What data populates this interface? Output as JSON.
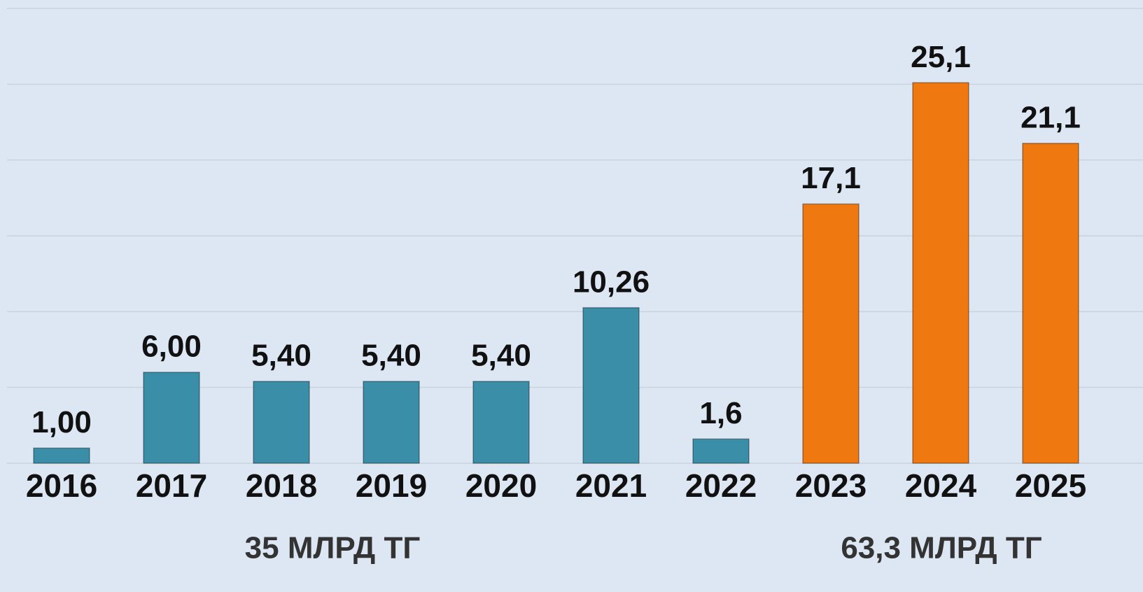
{
  "chart_data": {
    "type": "bar",
    "categories": [
      "2016",
      "2017",
      "2018",
      "2019",
      "2020",
      "2021",
      "2022",
      "2023",
      "2024",
      "2025"
    ],
    "values": [
      1.0,
      6.0,
      5.4,
      5.4,
      5.4,
      10.26,
      1.6,
      17.1,
      25.1,
      21.1
    ],
    "value_labels": [
      "1,00",
      "6,00",
      "5,40",
      "5,40",
      "5,40",
      "10,26",
      "1,6",
      "17,1",
      "25,1",
      "21,1"
    ],
    "colors": [
      "#3a8ea8",
      "#3a8ea8",
      "#3a8ea8",
      "#3a8ea8",
      "#3a8ea8",
      "#3a8ea8",
      "#3a8ea8",
      "#f07810",
      "#f07810",
      "#f07810"
    ],
    "ylim": [
      0,
      30
    ],
    "yticks": [
      0,
      5,
      10,
      15,
      20,
      25,
      30
    ],
    "grid": true,
    "annotations": [
      "35 МЛРД ТГ",
      "63,3 МЛРД ТГ"
    ]
  }
}
